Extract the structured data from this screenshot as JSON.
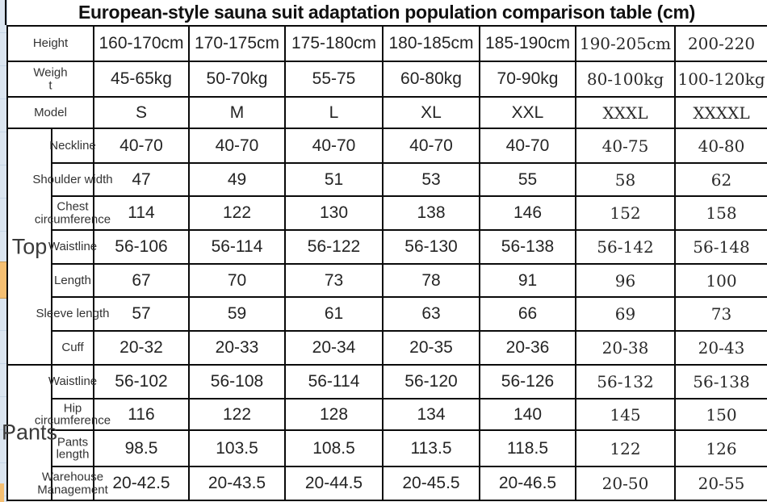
{
  "title": "European-style sauna suit adaptation population comparison table (cm)",
  "colors": {
    "background": "#ffffff",
    "border": "#0a0a0a",
    "text": "#1f1f1f",
    "edge_strip": "#dbe5f0",
    "highlight_cell": "#f5bf72"
  },
  "table": {
    "header_rows": [
      {
        "label": "Height",
        "values": [
          "160-170cm",
          "170-175cm",
          "175-180cm",
          "180-185cm",
          "185-190cm",
          "190-205cm",
          "200-220"
        ]
      },
      {
        "label": "Weigh\nt",
        "values": [
          "45-65kg",
          "50-70kg",
          "55-75",
          "60-80kg",
          "70-90kg",
          "80-100kg",
          "100-120kg"
        ]
      },
      {
        "label": "Model",
        "values": [
          "S",
          "M",
          "L",
          "XL",
          "XXL",
          "XXXL",
          "XXXXL"
        ]
      }
    ],
    "sections": [
      {
        "group": "Top",
        "rows": [
          {
            "label": "Neckline",
            "values": [
              "40-70",
              "40-70",
              "40-70",
              "40-70",
              "40-70",
              "40-75",
              "40-80"
            ]
          },
          {
            "label": "Shoulder width",
            "values": [
              "47",
              "49",
              "51",
              "53",
              "55",
              "58",
              "62"
            ]
          },
          {
            "label": "Chest\ncircumference",
            "values": [
              "114",
              "122",
              "130",
              "138",
              "146",
              "152",
              "158"
            ]
          },
          {
            "label": "Waistline",
            "values": [
              "56-106",
              "56-114",
              "56-122",
              "56-130",
              "56-138",
              "56-142",
              "56-148"
            ]
          },
          {
            "label": "Length",
            "values": [
              "67",
              "70",
              "73",
              "78",
              "91",
              "96",
              "100"
            ]
          },
          {
            "label": "Sleeve length",
            "values": [
              "57",
              "59",
              "61",
              "63",
              "66",
              "69",
              "73"
            ]
          },
          {
            "label": "Cuff",
            "values": [
              "20-32",
              "20-33",
              "20-34",
              "20-35",
              "20-36",
              "20-38",
              "20-43"
            ]
          }
        ]
      },
      {
        "group": "Pants",
        "rows": [
          {
            "label": "Waistline",
            "values": [
              "56-102",
              "56-108",
              "56-114",
              "56-120",
              "56-126",
              "56-132",
              "56-138"
            ]
          },
          {
            "label": "Hip\ncircumference",
            "values": [
              "116",
              "122",
              "128",
              "134",
              "140",
              "145",
              "150"
            ]
          },
          {
            "label": "Pants\nlength",
            "values": [
              "98.5",
              "103.5",
              "108.5",
              "113.5",
              "118.5",
              "122",
              "126"
            ]
          },
          {
            "label": "Warehouse\nManagement",
            "values": [
              "20-42.5",
              "20-43.5",
              "20-44.5",
              "20-45.5",
              "20-46.5",
              "20-50",
              "20-55"
            ]
          }
        ]
      }
    ]
  }
}
